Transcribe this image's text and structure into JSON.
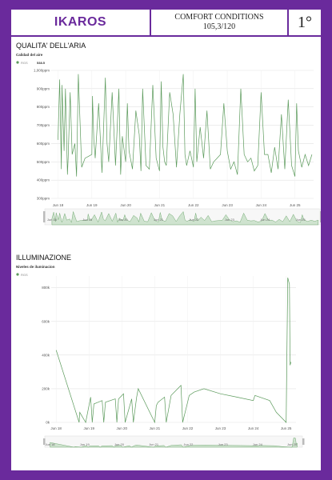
{
  "header": {
    "brand": "IKAROS",
    "comfort_title": "COMFORT CONDITIONS",
    "comfort_score": "105,3/120",
    "rank": "1°"
  },
  "colors": {
    "frame": "#6a2a9c",
    "series": "#5b9a5b",
    "nav_fill": "#cfe3cf"
  },
  "chart_data": [
    {
      "type": "line",
      "section_title": "QUALITA' DELL'ARIA",
      "title": "Calidad del aire",
      "legend": {
        "name": "RGS",
        "value": "538.5"
      },
      "y_ticks": [
        "1,000ppm",
        "900ppm",
        "800ppm",
        "700ppm",
        "600ppm",
        "500ppm",
        "400ppm",
        "300ppm"
      ],
      "y_tick_values": [
        1000,
        900,
        800,
        700,
        600,
        500,
        400,
        300
      ],
      "ylim": [
        300,
        1000
      ],
      "x_ticks": [
        "Jun 18",
        "Jun 19",
        "Jun 20",
        "Jun 21",
        "Jun 22",
        "Jun 23",
        "Jun 24",
        "Jun 25"
      ],
      "nav_ticks": [
        "Jun 18",
        "Jun 19",
        "Jun 20",
        "Jun 21",
        "Jun 22",
        "Jun 23",
        "Jun 24",
        "Jun 25"
      ],
      "series": [
        {
          "name": "RGS",
          "x": [
            18.0,
            18.05,
            18.1,
            18.12,
            18.18,
            18.22,
            18.28,
            18.3,
            18.36,
            18.42,
            18.5,
            18.55,
            18.6,
            18.7,
            18.8,
            18.9,
            19.0,
            19.02,
            19.06,
            19.1,
            19.2,
            19.3,
            19.4,
            19.45,
            19.5,
            19.6,
            19.7,
            19.8,
            19.85,
            19.9,
            20.0,
            20.05,
            20.1,
            20.2,
            20.3,
            20.4,
            20.45,
            20.5,
            20.6,
            20.7,
            20.8,
            20.9,
            21.0,
            21.05,
            21.1,
            21.15,
            21.2,
            21.3,
            21.4,
            21.5,
            21.6,
            21.7,
            21.75,
            21.8,
            21.9,
            22.0,
            22.05,
            22.1,
            22.2,
            22.3,
            22.4,
            22.5,
            22.6,
            22.7,
            22.8,
            22.9,
            23.0,
            23.1,
            23.2,
            23.3,
            23.4,
            23.5,
            23.6,
            23.7,
            23.8,
            23.9,
            24.0,
            24.1,
            24.2,
            24.3,
            24.4,
            24.5,
            24.6,
            24.7,
            24.8,
            24.9,
            25.0,
            25.05,
            25.1,
            25.2,
            25.3,
            25.4,
            25.5
          ],
          "values": [
            620,
            950,
            460,
            920,
            560,
            900,
            430,
            520,
            880,
            540,
            600,
            420,
            980,
            470,
            520,
            530,
            540,
            860,
            620,
            520,
            820,
            440,
            960,
            600,
            500,
            880,
            480,
            900,
            430,
            640,
            500,
            820,
            560,
            460,
            780,
            650,
            450,
            900,
            480,
            460,
            920,
            520,
            450,
            940,
            580,
            500,
            480,
            880,
            760,
            470,
            760,
            980,
            540,
            480,
            560,
            470,
            900,
            500,
            690,
            520,
            780,
            460,
            500,
            520,
            540,
            820,
            560,
            460,
            500,
            430,
            900,
            540,
            500,
            520,
            450,
            480,
            880,
            540,
            540,
            440,
            580,
            460,
            760,
            460,
            840,
            480,
            420,
            820,
            560,
            470,
            540,
            480,
            540
          ]
        }
      ]
    },
    {
      "type": "line",
      "section_title": "ILLUMINAZIONE",
      "title": "Niveles de iluminacion",
      "legend": {
        "name": "RGS",
        "value": ""
      },
      "y_ticks": [
        "800k",
        "600k",
        "400k",
        "200k",
        "0k"
      ],
      "y_tick_values": [
        800,
        600,
        400,
        200,
        0
      ],
      "ylim": [
        0,
        870
      ],
      "x_ticks": [
        "Jun 18",
        "Jun 19",
        "Jun 20",
        "Jun 21",
        "Jun 22",
        "Jun 23",
        "Jun 24",
        "Jun 25"
      ],
      "nav_ticks": [
        "Jun 18",
        "Jun 19",
        "Jun 20",
        "Jun 21",
        "Jun 22",
        "Jun 23",
        "Jun 24",
        "Jun 25"
      ],
      "series": [
        {
          "name": "RGS",
          "x": [
            18.0,
            18.7,
            18.72,
            18.9,
            19.05,
            19.1,
            19.15,
            19.4,
            19.45,
            19.5,
            19.8,
            19.85,
            19.9,
            20.05,
            20.1,
            20.3,
            20.35,
            20.45,
            20.5,
            21.0,
            21.05,
            21.1,
            21.3,
            21.35,
            21.5,
            21.8,
            21.85,
            22.0,
            22.05,
            22.2,
            22.5,
            23.0,
            23.5,
            24.0,
            24.05,
            24.5,
            24.7,
            25.0,
            25.05,
            25.1,
            25.12,
            25.15
          ],
          "values": [
            430,
            0,
            60,
            0,
            150,
            0,
            110,
            130,
            0,
            120,
            140,
            0,
            140,
            170,
            0,
            140,
            0,
            150,
            200,
            0,
            100,
            120,
            150,
            0,
            160,
            220,
            0,
            120,
            160,
            180,
            200,
            170,
            150,
            130,
            160,
            130,
            60,
            0,
            860,
            820,
            340,
            360
          ]
        }
      ]
    }
  ]
}
